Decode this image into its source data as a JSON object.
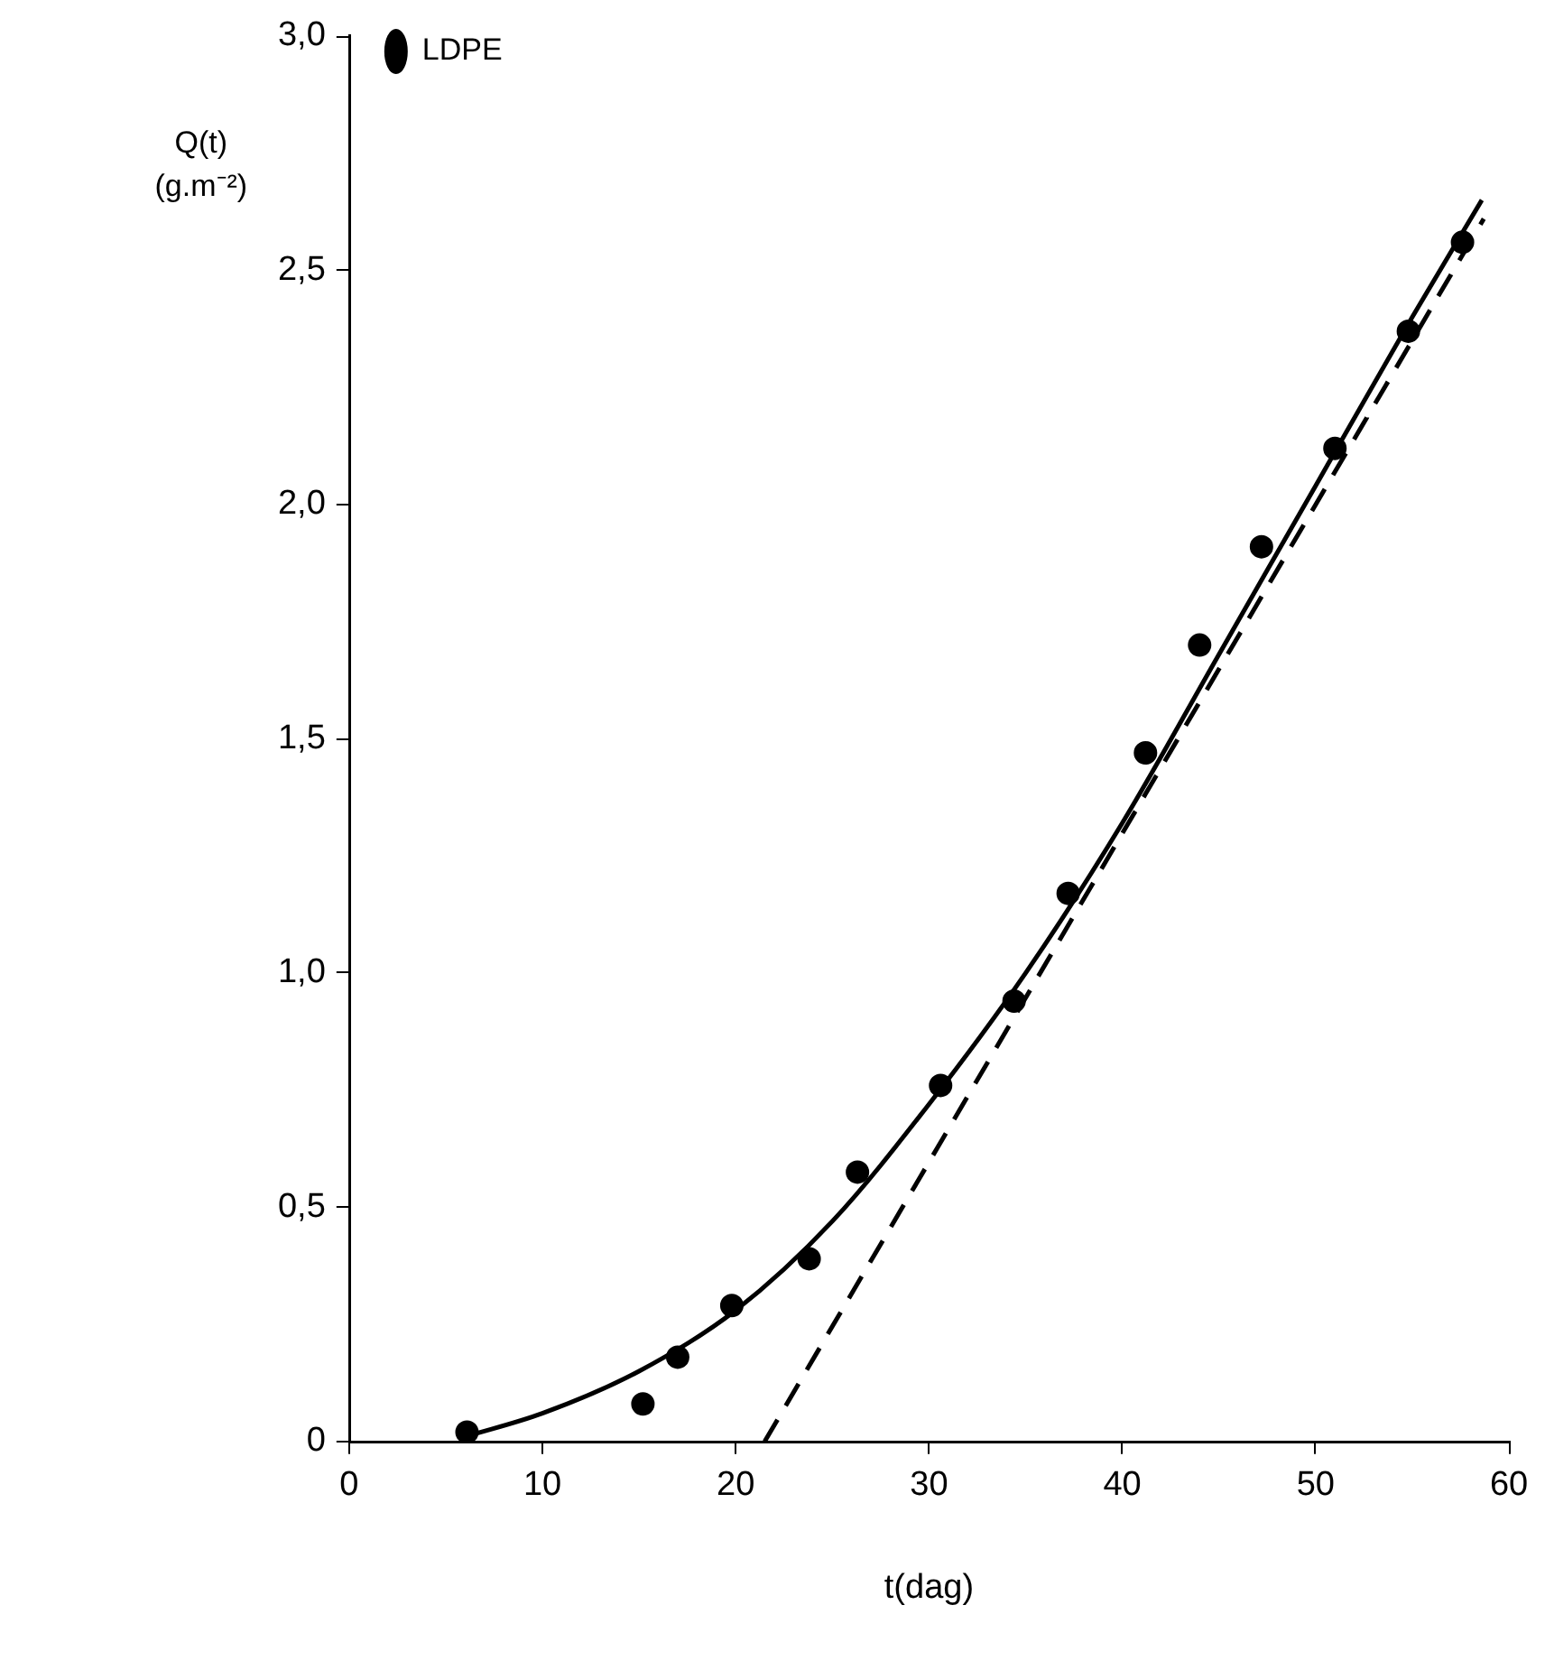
{
  "chart_data": {
    "type": "scatter",
    "xlabel": "t(dag)",
    "ylabel": "Q(t)\n(g.m⁻²)",
    "xlim": [
      0,
      60
    ],
    "xticks": [
      0,
      10,
      20,
      30,
      40,
      50,
      60
    ],
    "ylim": [
      0,
      3
    ],
    "yticks": [
      0,
      {
        "value": 0.5,
        "label": "0,5"
      },
      {
        "value": 1,
        "label": "1,0"
      },
      {
        "value": 1.5,
        "label": "1,5"
      },
      {
        "value": 2,
        "label": "2,0"
      },
      {
        "value": 2.5,
        "label": "2,5"
      },
      {
        "value": 3,
        "label": "3,0"
      }
    ],
    "grid": false,
    "legend": "top left",
    "marker": "circle",
    "series": [
      {
        "name": "LDPE",
        "type": "scatter",
        "color": "#000000",
        "x": [
          6.1,
          15.2,
          17.0,
          19.8,
          23.8,
          26.3,
          30.6,
          34.4,
          37.2,
          41.2,
          44.0,
          47.2,
          51.0,
          54.8,
          57.6
        ],
        "values": [
          0.02,
          0.08,
          0.18,
          0.29,
          0.39,
          0.575,
          0.76,
          0.94,
          1.17,
          1.47,
          1.7,
          1.91,
          2.12,
          2.37,
          2.56
        ]
      },
      {
        "type": "line",
        "color": "#000000",
        "line_style": "solid",
        "marker": "none",
        "x": [
          6,
          10,
          15,
          20,
          25,
          30,
          35,
          40,
          45,
          50,
          55,
          58.6
        ],
        "values": [
          0.01,
          0.06,
          0.15,
          0.28,
          0.47,
          0.72,
          1.0,
          1.32,
          1.68,
          2.04,
          2.4,
          2.65
        ]
      },
      {
        "type": "line",
        "color": "#000000",
        "line_style": "dashed",
        "marker": "none",
        "x": [
          21.5,
          58.7
        ],
        "values": [
          0,
          2.61
        ]
      }
    ]
  }
}
